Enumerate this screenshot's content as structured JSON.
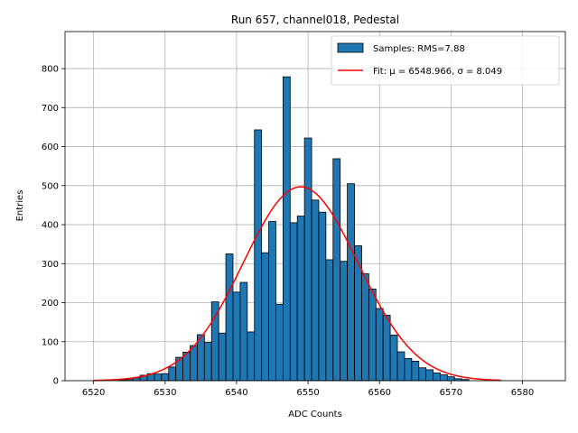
{
  "chart_data": {
    "type": "bar",
    "title": "Run 657, channel018, Pedestal",
    "xlabel": "ADC Counts",
    "ylabel": "Entries",
    "xlim": [
      6516,
      6586
    ],
    "ylim": [
      0,
      895
    ],
    "xticks": [
      6520,
      6530,
      6540,
      6550,
      6560,
      6570,
      6580
    ],
    "yticks": [
      0,
      100,
      200,
      300,
      400,
      500,
      600,
      700,
      800
    ],
    "grid": true,
    "legend_position": "top-right",
    "bar_color": "#1f77b4",
    "fit_color": "#ff0000",
    "histogram": {
      "name": "Samples: RMS=7.88",
      "bin_width": 1,
      "bins": [
        {
          "x": 6524,
          "y": 2
        },
        {
          "x": 6525,
          "y": 3
        },
        {
          "x": 6526,
          "y": 7
        },
        {
          "x": 6527,
          "y": 14
        },
        {
          "x": 6528,
          "y": 18
        },
        {
          "x": 6529,
          "y": 17
        },
        {
          "x": 6530,
          "y": 18
        },
        {
          "x": 6531,
          "y": 35
        },
        {
          "x": 6532,
          "y": 60
        },
        {
          "x": 6533,
          "y": 73
        },
        {
          "x": 6534,
          "y": 90
        },
        {
          "x": 6535,
          "y": 118
        },
        {
          "x": 6536,
          "y": 98
        },
        {
          "x": 6537,
          "y": 202
        },
        {
          "x": 6538,
          "y": 122
        },
        {
          "x": 6539,
          "y": 325
        },
        {
          "x": 6540,
          "y": 227
        },
        {
          "x": 6541,
          "y": 252
        },
        {
          "x": 6542,
          "y": 125
        },
        {
          "x": 6543,
          "y": 643
        },
        {
          "x": 6544,
          "y": 328
        },
        {
          "x": 6545,
          "y": 408
        },
        {
          "x": 6546,
          "y": 196
        },
        {
          "x": 6547,
          "y": 779
        },
        {
          "x": 6548,
          "y": 405
        },
        {
          "x": 6549,
          "y": 422
        },
        {
          "x": 6550,
          "y": 622
        },
        {
          "x": 6551,
          "y": 463
        },
        {
          "x": 6552,
          "y": 432
        },
        {
          "x": 6553,
          "y": 310
        },
        {
          "x": 6554,
          "y": 569
        },
        {
          "x": 6555,
          "y": 306
        },
        {
          "x": 6556,
          "y": 505
        },
        {
          "x": 6557,
          "y": 346
        },
        {
          "x": 6558,
          "y": 274
        },
        {
          "x": 6559,
          "y": 235
        },
        {
          "x": 6560,
          "y": 185
        },
        {
          "x": 6561,
          "y": 168
        },
        {
          "x": 6562,
          "y": 117
        },
        {
          "x": 6563,
          "y": 74
        },
        {
          "x": 6564,
          "y": 57
        },
        {
          "x": 6565,
          "y": 50
        },
        {
          "x": 6566,
          "y": 33
        },
        {
          "x": 6567,
          "y": 28
        },
        {
          "x": 6568,
          "y": 20
        },
        {
          "x": 6569,
          "y": 15
        },
        {
          "x": 6570,
          "y": 10
        },
        {
          "x": 6571,
          "y": 5
        },
        {
          "x": 6572,
          "y": 3
        }
      ]
    },
    "fit": {
      "name": "Fit: μ = 6548.966, σ = 8.049",
      "mu": 6548.966,
      "sigma": 8.049,
      "amplitude": 497,
      "x_range": [
        6520,
        6577
      ]
    }
  }
}
